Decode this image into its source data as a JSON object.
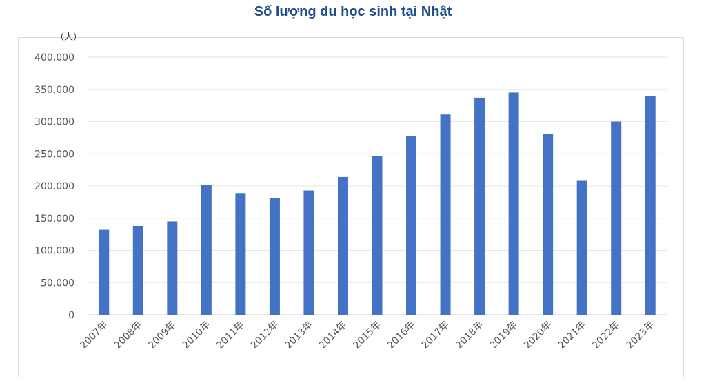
{
  "chart_data": {
    "type": "bar",
    "title": "Số lượng du học sinh tại Nhật",
    "unit_label": "（人）",
    "categories": [
      "2007年",
      "2008年",
      "2009年",
      "2010年",
      "2011年",
      "2012年",
      "2013年",
      "2014年",
      "2015年",
      "2016年",
      "2017年",
      "2018年",
      "2019年",
      "2020年",
      "2021年",
      "2022年",
      "2023年"
    ],
    "series": [
      {
        "values": [
          132000,
          138000,
          145000,
          202000,
          189000,
          181000,
          193000,
          214000,
          247000,
          278000,
          311000,
          337000,
          345000,
          281000,
          208000,
          300000,
          340000
        ]
      }
    ],
    "ylim": [
      0,
      400000
    ],
    "y_ticks": [
      "0",
      "50,000",
      "100,000",
      "150,000",
      "200,000",
      "250,000",
      "300,000",
      "350,000",
      "400,000"
    ],
    "xlabel": "",
    "ylabel": "",
    "grid": true,
    "legend": "none",
    "bar_color": "#4472c4",
    "grid_color": "#e6e6e6"
  }
}
